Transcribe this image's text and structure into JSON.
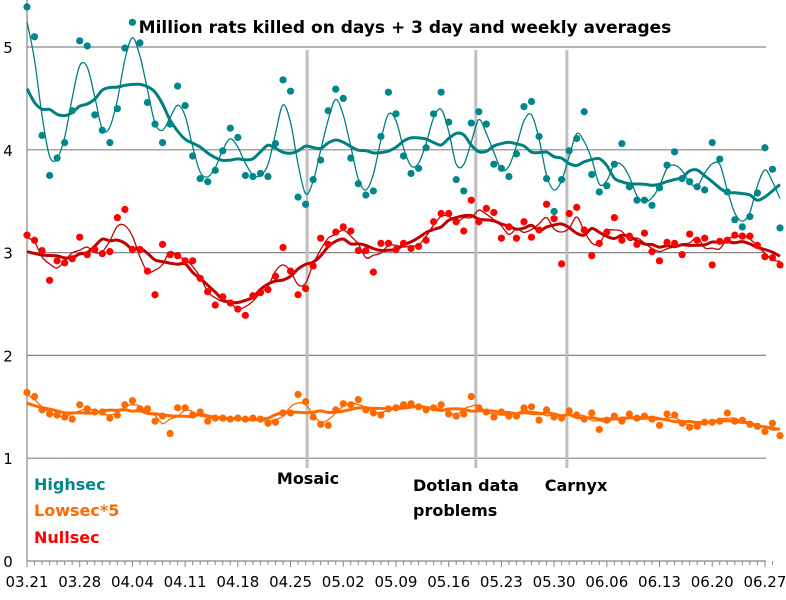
{
  "chart_data": {
    "type": "line",
    "title": "Million rats killed on days + 3 day and weekly averages",
    "xlabel": "",
    "ylabel": "",
    "ylim": [
      0,
      5.4
    ],
    "yticks": [
      0,
      1,
      2,
      3,
      4,
      5
    ],
    "grid": true,
    "x_tick_labels": [
      "03.21",
      "03.28",
      "04.04",
      "04.11",
      "04.18",
      "04.25",
      "05.02",
      "05.09",
      "05.16",
      "05.23",
      "05.30",
      "06.06",
      "06.13",
      "06.20",
      "06.27"
    ],
    "x_days": 99,
    "legend": {
      "placement": "bottom-left",
      "entries": [
        {
          "name": "Highsec",
          "color": "#00868B"
        },
        {
          "name": "Lowsec*5",
          "color": "#FF6A00"
        },
        {
          "name": "Nullsec",
          "color": "#FF0000"
        }
      ]
    },
    "annotations": [
      {
        "label": "Mosaic",
        "day": 37.2,
        "lines": [
          "Mosaic"
        ]
      },
      {
        "label": "Dotlan data problems",
        "day": 59.6,
        "lines": [
          "Dotlan data",
          "problems"
        ]
      },
      {
        "label": "Carnyx",
        "day": 71.7,
        "lines": [
          "Carnyx"
        ]
      }
    ],
    "series": [
      {
        "name": "Highsec",
        "color": "#00868B",
        "avg_color": "#007F7F",
        "values": [
          5.39,
          5.1,
          4.14,
          3.75,
          3.92,
          4.07,
          4.38,
          5.06,
          5.01,
          4.34,
          4.19,
          4.07,
          4.4,
          4.99,
          5.24,
          5.04,
          4.46,
          4.25,
          4.07,
          4.25,
          4.62,
          4.43,
          3.94,
          3.72,
          3.69,
          3.8,
          3.99,
          4.21,
          4.12,
          3.75,
          3.74,
          3.77,
          3.74,
          4.06,
          4.68,
          4.57,
          3.54,
          3.47,
          3.71,
          3.9,
          4.38,
          4.59,
          4.5,
          3.92,
          3.67,
          3.56,
          3.6,
          4.13,
          4.56,
          4.35,
          3.94,
          3.77,
          3.82,
          4.02,
          4.35,
          4.56,
          4.27,
          3.71,
          3.6,
          4.26,
          4.37,
          4.25,
          3.86,
          3.82,
          3.74,
          3.96,
          4.42,
          4.47,
          4.13,
          3.72,
          3.4,
          3.71,
          3.99,
          4.11,
          4.37,
          3.76,
          3.59,
          3.65,
          3.86,
          4.06,
          3.64,
          3.51,
          3.51,
          3.46,
          3.63,
          3.85,
          3.98,
          3.72,
          3.69,
          3.64,
          3.61,
          4.07,
          3.91,
          3.59,
          3.32,
          3.25,
          3.35,
          3.58,
          4.02,
          3.81,
          3.24
        ],
        "avg3_note": "thin smoothed 3-day average",
        "weekly_note": "thick smoothed weekly average"
      },
      {
        "name": "Lowsec*5",
        "color": "#FF6A00",
        "values": [
          1.64,
          1.6,
          1.47,
          1.43,
          1.42,
          1.4,
          1.38,
          1.52,
          1.48,
          1.45,
          1.45,
          1.39,
          1.42,
          1.52,
          1.56,
          1.48,
          1.48,
          1.36,
          1.41,
          1.24,
          1.49,
          1.49,
          1.42,
          1.45,
          1.36,
          1.39,
          1.39,
          1.38,
          1.39,
          1.38,
          1.39,
          1.38,
          1.34,
          1.35,
          1.44,
          1.44,
          1.62,
          1.55,
          1.4,
          1.33,
          1.32,
          1.47,
          1.53,
          1.52,
          1.57,
          1.47,
          1.44,
          1.42,
          1.48,
          1.49,
          1.52,
          1.53,
          1.5,
          1.47,
          1.49,
          1.52,
          1.43,
          1.41,
          1.43,
          1.6,
          1.49,
          1.45,
          1.4,
          1.45,
          1.41,
          1.41,
          1.49,
          1.5,
          1.37,
          1.47,
          1.4,
          1.39,
          1.46,
          1.42,
          1.38,
          1.44,
          1.28,
          1.37,
          1.41,
          1.36,
          1.43,
          1.39,
          1.41,
          1.38,
          1.32,
          1.43,
          1.42,
          1.34,
          1.3,
          1.31,
          1.35,
          1.35,
          1.36,
          1.44,
          1.36,
          1.37,
          1.33,
          1.31,
          1.26,
          1.34,
          1.22
        ],
        "raw_note": "Lowsec values multiplied by 5"
      },
      {
        "name": "Nullsec",
        "color": "#FF0000",
        "avg_color": "#C00000",
        "values": [
          3.17,
          3.12,
          3.02,
          2.73,
          2.92,
          2.9,
          2.94,
          3.15,
          2.98,
          3.03,
          2.99,
          3.01,
          3.34,
          3.42,
          3.03,
          3.03,
          2.82,
          2.59,
          3.08,
          2.98,
          2.97,
          2.92,
          2.92,
          2.75,
          2.62,
          2.49,
          2.57,
          2.51,
          2.45,
          2.39,
          2.58,
          2.61,
          2.64,
          2.77,
          3.05,
          2.82,
          2.59,
          2.65,
          2.87,
          3.14,
          3.08,
          3.2,
          3.25,
          3.21,
          3.02,
          3.02,
          2.81,
          3.09,
          3.09,
          3.03,
          3.09,
          3.04,
          3.06,
          3.12,
          3.3,
          3.38,
          3.38,
          3.3,
          3.21,
          3.51,
          3.3,
          3.43,
          3.39,
          3.14,
          3.25,
          3.14,
          3.3,
          3.15,
          3.22,
          3.47,
          3.33,
          2.89,
          3.38,
          3.44,
          3.22,
          2.97,
          3.09,
          3.2,
          3.34,
          3.12,
          3.16,
          3.08,
          3.19,
          3.01,
          2.92,
          3.1,
          3.09,
          2.98,
          3.18,
          3.12,
          3.14,
          2.88,
          3.11,
          3.12,
          3.17,
          3.16,
          3.16,
          3.07,
          2.96,
          2.95,
          2.88
        ]
      }
    ]
  }
}
